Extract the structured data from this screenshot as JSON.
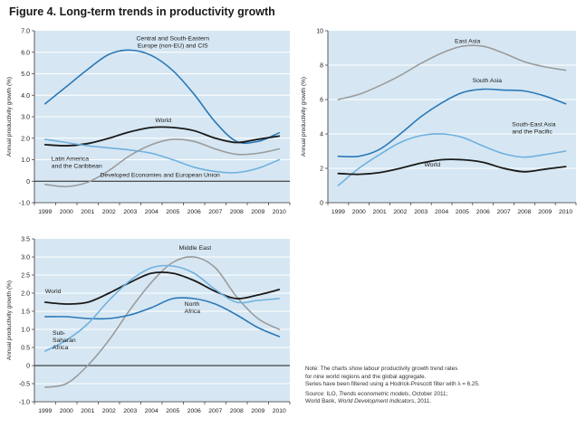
{
  "figure": {
    "title": "Figure 4.  Long-term trends in productivity growth"
  },
  "colors": {
    "plot_bg": "#d6e7f3",
    "grid": "#ffffff",
    "world": "#1a1a1a",
    "light_blue": "#6fb1de",
    "dark_blue": "#2a78b8",
    "gray": "#9b9b9b"
  },
  "chart_data": [
    {
      "type": "line",
      "x": [
        1999,
        2000,
        2001,
        2002,
        2003,
        2004,
        2005,
        2006,
        2007,
        2008,
        2009,
        2010
      ],
      "ylim": [
        -1.0,
        7.0
      ],
      "yticks": [
        "-1.0",
        "0",
        "1.0",
        "2.0",
        "3.0",
        "4.0",
        "5.0",
        "6.0",
        "7.0"
      ],
      "ylabel": "Annual productivity growth (%)",
      "grid": true,
      "series": [
        {
          "name": "Central and South-Eastern Europe (non-EU) and CIS",
          "label_lines": [
            "Central and South-Eastern",
            "Europe (non-EU) and CIS"
          ],
          "color": "dark_blue",
          "values": [
            3.6,
            4.4,
            5.2,
            5.9,
            6.1,
            5.85,
            5.15,
            4.05,
            2.75,
            1.85,
            1.85,
            2.25
          ]
        },
        {
          "name": "World",
          "label_lines": [
            "World"
          ],
          "color": "world",
          "values": [
            1.7,
            1.65,
            1.75,
            2.0,
            2.3,
            2.5,
            2.5,
            2.35,
            2.0,
            1.8,
            1.95,
            2.1
          ]
        },
        {
          "name": "Latin America and the Caribbean",
          "label_lines": [
            "Latin America",
            "and the Caribbean"
          ],
          "color": "light_blue",
          "values": [
            1.95,
            1.8,
            1.65,
            1.55,
            1.45,
            1.3,
            1.0,
            0.65,
            0.45,
            0.4,
            0.6,
            1.0
          ]
        },
        {
          "name": "Developed Economies and European Union",
          "label_lines": [
            "Developed Economies and European Union"
          ],
          "color": "gray",
          "values": [
            -0.15,
            -0.25,
            -0.05,
            0.5,
            1.2,
            1.7,
            1.95,
            1.85,
            1.5,
            1.25,
            1.3,
            1.5
          ]
        }
      ]
    },
    {
      "type": "line",
      "x": [
        1999,
        2000,
        2001,
        2002,
        2003,
        2004,
        2005,
        2006,
        2007,
        2008,
        2009,
        2010
      ],
      "ylim": [
        0,
        10
      ],
      "yticks": [
        "0",
        "2",
        "4",
        "6",
        "8",
        "10"
      ],
      "ylabel": "Annual productivity growth (%)",
      "grid": true,
      "series": [
        {
          "name": "East Asia",
          "label_lines": [
            "East Asia"
          ],
          "color": "gray",
          "values": [
            6.0,
            6.3,
            6.8,
            7.4,
            8.1,
            8.7,
            9.1,
            9.1,
            8.7,
            8.2,
            7.9,
            7.7
          ]
        },
        {
          "name": "South Asia",
          "label_lines": [
            "South Asia"
          ],
          "color": "dark_blue",
          "values": [
            2.7,
            2.7,
            3.1,
            4.0,
            5.0,
            5.8,
            6.4,
            6.6,
            6.55,
            6.5,
            6.2,
            5.75
          ]
        },
        {
          "name": "South-East Asia and the Pacific",
          "label_lines": [
            "South-East Asia",
            "and the Pacific"
          ],
          "color": "light_blue",
          "values": [
            1.0,
            2.0,
            2.8,
            3.5,
            3.9,
            4.0,
            3.8,
            3.3,
            2.85,
            2.65,
            2.8,
            3.0
          ]
        },
        {
          "name": "World",
          "label_lines": [
            "World"
          ],
          "color": "world",
          "values": [
            1.7,
            1.65,
            1.75,
            2.0,
            2.3,
            2.5,
            2.5,
            2.35,
            2.0,
            1.8,
            1.95,
            2.1
          ]
        }
      ]
    },
    {
      "type": "line",
      "x": [
        1999,
        2000,
        2001,
        2002,
        2003,
        2004,
        2005,
        2006,
        2007,
        2008,
        2009,
        2010
      ],
      "ylim": [
        -1.0,
        3.5
      ],
      "yticks": [
        "-1.0",
        "-0.5",
        "0",
        "0.5",
        "1.0",
        "1.5",
        "2.0",
        "2.5",
        "3.0",
        "3.5"
      ],
      "ylabel": "Annual productivity growth (%)",
      "grid": true,
      "series": [
        {
          "name": "Middle East",
          "label_lines": [
            "Middle East"
          ],
          "color": "gray",
          "values": [
            -0.6,
            -0.5,
            0.0,
            0.7,
            1.55,
            2.3,
            2.85,
            3.0,
            2.7,
            1.9,
            1.3,
            1.0
          ]
        },
        {
          "name": "World",
          "label_lines": [
            "World"
          ],
          "color": "world",
          "values": [
            1.75,
            1.7,
            1.75,
            2.0,
            2.3,
            2.55,
            2.55,
            2.35,
            2.05,
            1.85,
            1.95,
            2.1
          ]
        },
        {
          "name": "North Africa",
          "label_lines": [
            "North",
            "Africa"
          ],
          "color": "dark_blue",
          "values": [
            1.35,
            1.35,
            1.3,
            1.3,
            1.4,
            1.6,
            1.85,
            1.85,
            1.7,
            1.4,
            1.05,
            0.8
          ]
        },
        {
          "name": "Sub-Saharan Africa",
          "label_lines": [
            "Sub-",
            "Saharan",
            "Africa"
          ],
          "color": "light_blue",
          "values": [
            0.4,
            0.7,
            1.15,
            1.8,
            2.35,
            2.7,
            2.75,
            2.55,
            2.1,
            1.75,
            1.8,
            1.85
          ]
        }
      ]
    }
  ],
  "note": {
    "line1": "Note: The charts show labour productivity growth trend rates",
    "line2": "for nine world regions and the global aggregate.",
    "line3": "Series have been filtered using a Hodrick-Prescott filter with λ = 6.25.",
    "source_prefix": "Source: ILO, ",
    "source_title1": "Trends econometric models",
    "source_mid": ", October 2011;",
    "source2_prefix": "World Bank, ",
    "source_title2": "World Development Indicators",
    "source2_suffix": ", 2011."
  }
}
